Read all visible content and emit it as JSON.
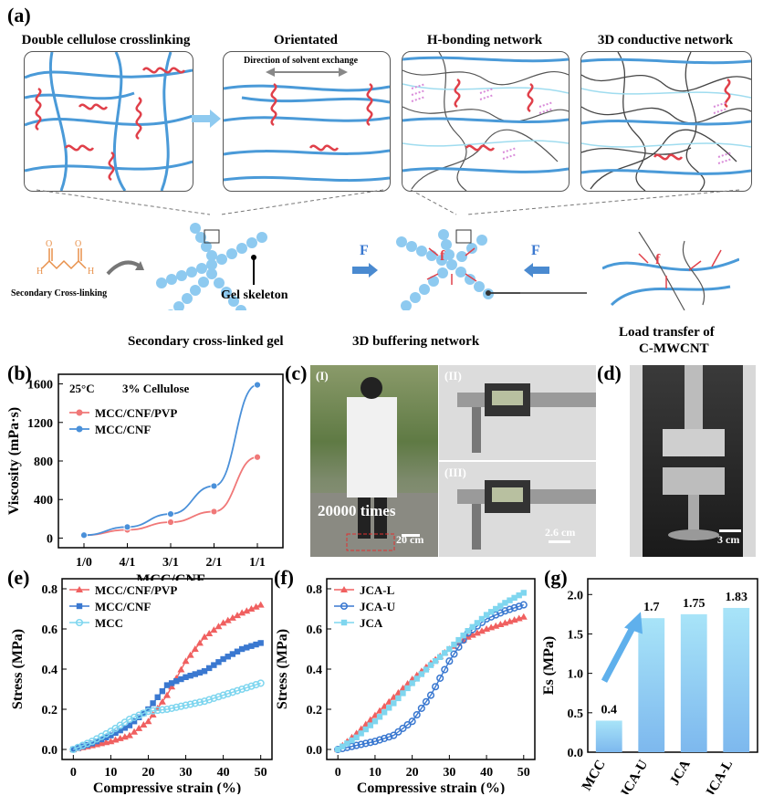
{
  "panel_a": {
    "label": "(a)",
    "box_titles": [
      "Double cellulose crosslinking",
      "Orientated",
      "H-bonding network",
      "3D conductive network"
    ],
    "direction_label": "Direction of solvent exchange",
    "secondary_crosslinking": "Secondary Cross-linking",
    "gel_skeleton": "Gel skeleton",
    "f_label": "f",
    "F_label": "F",
    "caption_gel": "Secondary cross-linked gel",
    "caption_buffer": "3D buffering network",
    "caption_load_1": "Load transfer of",
    "caption_load_2": "C-MWCNT",
    "atom_h": "H",
    "atom_o": "O",
    "colors": {
      "cellulose": "#4a9ad8",
      "crosslink": "#e0404a",
      "hbond": "#d98bd9",
      "cnt": "#555555",
      "ball": "#8ecaf0"
    }
  },
  "panel_b": {
    "label": "(b)",
    "note_temp": "25°C",
    "note_cell": "3% Cellulose",
    "chart_data": {
      "type": "line",
      "title": "",
      "xlabel": "MCC/CNF",
      "ylabel": "Viscosity (mPa·s)",
      "categories": [
        "1/0",
        "4/1",
        "3/1",
        "2/1",
        "1/1"
      ],
      "ylim": [
        -100,
        1700
      ],
      "yticks": [
        0,
        400,
        800,
        1200,
        1600
      ],
      "series": [
        {
          "name": "MCC/CNF/PVP",
          "color": "#f07878",
          "values": [
            30,
            85,
            165,
            275,
            840
          ]
        },
        {
          "name": "MCC/CNF",
          "color": "#4a90d9",
          "values": [
            30,
            115,
            250,
            540,
            1590
          ]
        }
      ]
    }
  },
  "panel_c": {
    "label": "(c)",
    "sub1": "(I)",
    "sub2": "(II)",
    "sub3": "(III)",
    "times": "20000 times",
    "scale1": "20 cm",
    "scale2": "2.6 cm"
  },
  "panel_d": {
    "label": "(d)",
    "scale": "3 cm"
  },
  "panel_e": {
    "label": "(e)",
    "chart_data": {
      "type": "line",
      "xlabel": "Compressive strain (%)",
      "ylabel": "Stress (MPa)",
      "x": [
        0,
        5,
        10,
        15,
        20,
        25,
        30,
        35,
        40,
        45,
        50
      ],
      "xlim": [
        -3,
        53
      ],
      "ylim": [
        -0.05,
        0.85
      ],
      "xticks": [
        0,
        10,
        20,
        30,
        40,
        50
      ],
      "yticks": [
        0.0,
        0.2,
        0.4,
        0.6,
        0.8
      ],
      "series": [
        {
          "name": "MCC/CNF/PVP",
          "color": "#f06060",
          "marker": "triangle",
          "values": [
            0.0,
            0.02,
            0.04,
            0.07,
            0.14,
            0.27,
            0.44,
            0.56,
            0.63,
            0.68,
            0.72
          ]
        },
        {
          "name": "MCC/CNF",
          "color": "#3a78d0",
          "marker": "square",
          "values": [
            0.0,
            0.03,
            0.07,
            0.12,
            0.2,
            0.32,
            0.36,
            0.39,
            0.45,
            0.5,
            0.53
          ]
        },
        {
          "name": "MCC",
          "color": "#7fd6ef",
          "marker": "circle",
          "values": [
            0.0,
            0.04,
            0.09,
            0.15,
            0.19,
            0.2,
            0.22,
            0.24,
            0.27,
            0.3,
            0.33
          ]
        }
      ]
    }
  },
  "panel_f": {
    "label": "(f)",
    "chart_data": {
      "type": "line",
      "xlabel": "Compressive strain (%)",
      "ylabel": "Stress (MPa)",
      "x": [
        0,
        5,
        10,
        15,
        20,
        25,
        30,
        35,
        40,
        45,
        50
      ],
      "xlim": [
        -3,
        53
      ],
      "ylim": [
        -0.05,
        0.85
      ],
      "xticks": [
        0,
        10,
        20,
        30,
        40,
        50
      ],
      "yticks": [
        0.0,
        0.2,
        0.4,
        0.6,
        0.8
      ],
      "series": [
        {
          "name": "JCA-L",
          "color": "#f06060",
          "marker": "triangle",
          "values": [
            0.0,
            0.08,
            0.17,
            0.26,
            0.35,
            0.43,
            0.5,
            0.56,
            0.6,
            0.63,
            0.66
          ]
        },
        {
          "name": "JCA-U",
          "color": "#3a78d0",
          "marker": "circle",
          "values": [
            0.0,
            0.02,
            0.04,
            0.07,
            0.14,
            0.27,
            0.44,
            0.58,
            0.65,
            0.69,
            0.72
          ]
        },
        {
          "name": "JCA",
          "color": "#7fd6ef",
          "marker": "square",
          "values": [
            0.0,
            0.06,
            0.14,
            0.23,
            0.33,
            0.42,
            0.5,
            0.59,
            0.67,
            0.73,
            0.78
          ]
        }
      ]
    }
  },
  "panel_g": {
    "label": "(g)",
    "chart_data": {
      "type": "bar",
      "xlabel": "",
      "ylabel": "Es (MPa)",
      "categories": [
        "MCC",
        "JCA-U",
        "JCA",
        "JCA-L"
      ],
      "values": [
        0.4,
        1.7,
        1.75,
        1.83
      ],
      "value_labels": [
        "0.4",
        "1.7",
        "1.75",
        "1.83"
      ],
      "ylim": [
        0,
        2.2
      ],
      "yticks": [
        0.0,
        0.5,
        1.0,
        1.5,
        2.0
      ]
    }
  }
}
